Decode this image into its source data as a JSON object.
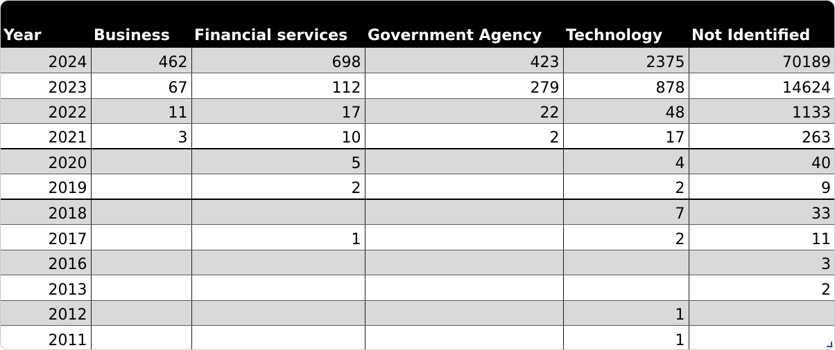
{
  "table": {
    "columns": [
      "Year",
      "Business",
      "Financial services",
      "Government Agency",
      "Technology",
      "Not Identified"
    ],
    "rows": [
      [
        "2024",
        "462",
        "698",
        "423",
        "2375",
        "70189"
      ],
      [
        "2023",
        "67",
        "112",
        "279",
        "878",
        "14624"
      ],
      [
        "2022",
        "11",
        "17",
        "22",
        "48",
        "1133"
      ],
      [
        "2021",
        "3",
        "10",
        "2",
        "17",
        "263"
      ],
      [
        "2020",
        "",
        "5",
        "",
        "4",
        "40"
      ],
      [
        "2019",
        "",
        "2",
        "",
        "2",
        "9"
      ],
      [
        "2018",
        "",
        "",
        "",
        "7",
        "33"
      ],
      [
        "2017",
        "",
        "1",
        "",
        "2",
        "11"
      ],
      [
        "2016",
        "",
        "",
        "",
        "",
        "3"
      ],
      [
        "2013",
        "",
        "",
        "",
        "",
        "2"
      ],
      [
        "2012",
        "",
        "",
        "",
        "1",
        ""
      ],
      [
        "2011",
        "",
        "",
        "",
        "1",
        ""
      ]
    ]
  },
  "colors": {
    "header_bg": "#000000",
    "header_text": "#ffffff",
    "band_shaded": "#d9d9d9",
    "band_plain": "#ffffff"
  }
}
